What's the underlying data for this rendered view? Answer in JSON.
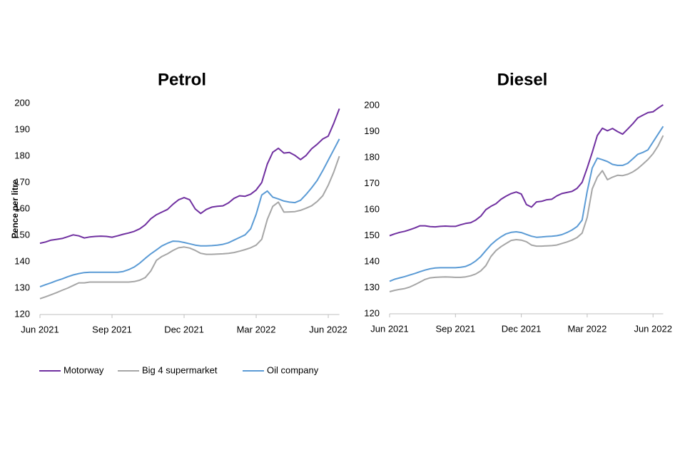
{
  "chart_data": [
    {
      "type": "line",
      "title": "Petrol",
      "y_label": "Pence per litre",
      "categories": [
        "Jun 2021",
        null,
        null,
        null,
        null,
        null,
        null,
        null,
        null,
        null,
        null,
        null,
        null,
        "Sep 2021",
        null,
        null,
        null,
        null,
        null,
        null,
        null,
        null,
        null,
        null,
        null,
        null,
        "Dec 2021",
        null,
        null,
        null,
        null,
        null,
        null,
        null,
        null,
        null,
        null,
        null,
        null,
        "Mar 2022",
        null,
        null,
        null,
        null,
        null,
        null,
        null,
        null,
        null,
        null,
        null,
        null,
        "Jun 2022",
        null,
        null
      ],
      "ylim": [
        120,
        200
      ],
      "yticks": [
        120,
        130,
        140,
        150,
        160,
        170,
        180,
        190,
        200
      ],
      "series": [
        {
          "name": "Motorway",
          "color": "#7030a0",
          "values": [
            147,
            147.5,
            148.2,
            148.5,
            148.8,
            149.5,
            150.2,
            149.8,
            149,
            149.4,
            149.6,
            149.7,
            149.6,
            149.3,
            149.8,
            150.4,
            150.9,
            151.5,
            152.5,
            154,
            156.3,
            157.8,
            158.8,
            159.8,
            161.8,
            163.5,
            164.3,
            163.5,
            160,
            158.3,
            159.8,
            160.7,
            161,
            161.2,
            162.3,
            164,
            165,
            164.8,
            165.6,
            167.2,
            170,
            177,
            181.5,
            183,
            181.2,
            181.4,
            180.3,
            178.7,
            180.3,
            182.8,
            184.5,
            186.5,
            187.6,
            192.5,
            198
          ]
        },
        {
          "name": "Big 4 supermarket",
          "color": "#a6a6a6",
          "values": [
            126,
            126.7,
            127.5,
            128.3,
            129.2,
            130,
            131,
            132,
            132,
            132.3,
            132.3,
            132.3,
            132.3,
            132.3,
            132.3,
            132.3,
            132.3,
            132.5,
            133,
            134,
            136.5,
            140.5,
            142,
            143,
            144.3,
            145.3,
            145.6,
            145.2,
            144.3,
            143.2,
            142.8,
            142.8,
            142.9,
            143,
            143.2,
            143.5,
            144,
            144.6,
            145.3,
            146.3,
            148.5,
            156,
            161,
            162.6,
            158.8,
            158.9,
            159,
            159.5,
            160.3,
            161.2,
            162.8,
            165,
            169,
            174,
            180
          ]
        },
        {
          "name": "Oil company",
          "color": "#5b9bd5",
          "values": [
            130.5,
            131.3,
            132,
            132.8,
            133.5,
            134.3,
            135,
            135.5,
            135.9,
            136,
            136,
            136,
            136,
            136,
            136,
            136.3,
            137,
            138,
            139.5,
            141.3,
            143,
            144.5,
            146,
            147,
            147.8,
            147.7,
            147.3,
            146.8,
            146.3,
            146,
            146,
            146.1,
            146.3,
            146.6,
            147.2,
            148.2,
            149.2,
            150.2,
            152.5,
            158,
            165.3,
            166.8,
            164.5,
            163.8,
            163,
            162.6,
            162.4,
            163.3,
            165.5,
            168,
            170.8,
            174.5,
            178.5,
            182.5,
            186.5
          ]
        }
      ]
    },
    {
      "type": "line",
      "title": "Diesel",
      "categories": [
        "Jun 2021",
        null,
        null,
        null,
        null,
        null,
        null,
        null,
        null,
        null,
        null,
        null,
        null,
        "Sep 2021",
        null,
        null,
        null,
        null,
        null,
        null,
        null,
        null,
        null,
        null,
        null,
        null,
        "Dec 2021",
        null,
        null,
        null,
        null,
        null,
        null,
        null,
        null,
        null,
        null,
        null,
        null,
        "Mar 2022",
        null,
        null,
        null,
        null,
        null,
        null,
        null,
        null,
        null,
        null,
        null,
        null,
        "Jun 2022",
        null,
        null
      ],
      "ylim": [
        120,
        200
      ],
      "yticks": [
        120,
        130,
        140,
        150,
        160,
        170,
        180,
        190,
        200
      ],
      "series": [
        {
          "color": "#7030a0",
          "values": [
            150,
            150.7,
            151.3,
            151.7,
            152.3,
            153,
            153.8,
            153.8,
            153.5,
            153.4,
            153.6,
            153.7,
            153.6,
            153.6,
            154.2,
            154.7,
            155,
            156,
            157.5,
            160,
            161.3,
            162.3,
            164,
            165.2,
            166.2,
            166.8,
            166,
            162,
            161,
            163,
            163.2,
            163.8,
            164,
            165.3,
            166.2,
            166.6,
            167,
            168.2,
            170.5,
            176,
            182,
            188.5,
            191.3,
            190.3,
            191.2,
            190,
            189,
            191,
            193,
            195.3,
            196.3,
            197.3,
            197.6,
            199,
            200.3
          ]
        },
        {
          "color": "#a6a6a6",
          "values": [
            128.5,
            129,
            129.4,
            129.7,
            130.3,
            131.2,
            132.2,
            133.2,
            133.8,
            134,
            134.1,
            134.2,
            134.1,
            134,
            134,
            134.2,
            134.6,
            135.3,
            136.5,
            138.5,
            142,
            144.3,
            145.8,
            147,
            148.2,
            148.5,
            148.3,
            147.7,
            146.4,
            146,
            146,
            146.1,
            146.2,
            146.4,
            147,
            147.6,
            148.3,
            149.3,
            151,
            157,
            168,
            172.5,
            175,
            171.5,
            172.5,
            173.2,
            173.1,
            173.6,
            174.5,
            175.8,
            177.5,
            179.3,
            181.5,
            184.5,
            188.5
          ]
        },
        {
          "color": "#5b9bd5",
          "values": [
            132.5,
            133.3,
            133.8,
            134.3,
            134.9,
            135.5,
            136.2,
            136.8,
            137.3,
            137.6,
            137.7,
            137.7,
            137.7,
            137.7,
            137.9,
            138.2,
            139,
            140.3,
            142,
            144.3,
            146.5,
            148.2,
            149.6,
            150.7,
            151.3,
            151.5,
            151.2,
            150.5,
            149.8,
            149.4,
            149.5,
            149.7,
            149.8,
            150,
            150.4,
            151.2,
            152.2,
            153.5,
            156,
            167,
            176,
            179.8,
            179.2,
            178.5,
            177.4,
            177,
            177,
            177.8,
            179.5,
            181.3,
            182,
            183,
            186,
            189,
            192
          ]
        }
      ]
    }
  ]
}
